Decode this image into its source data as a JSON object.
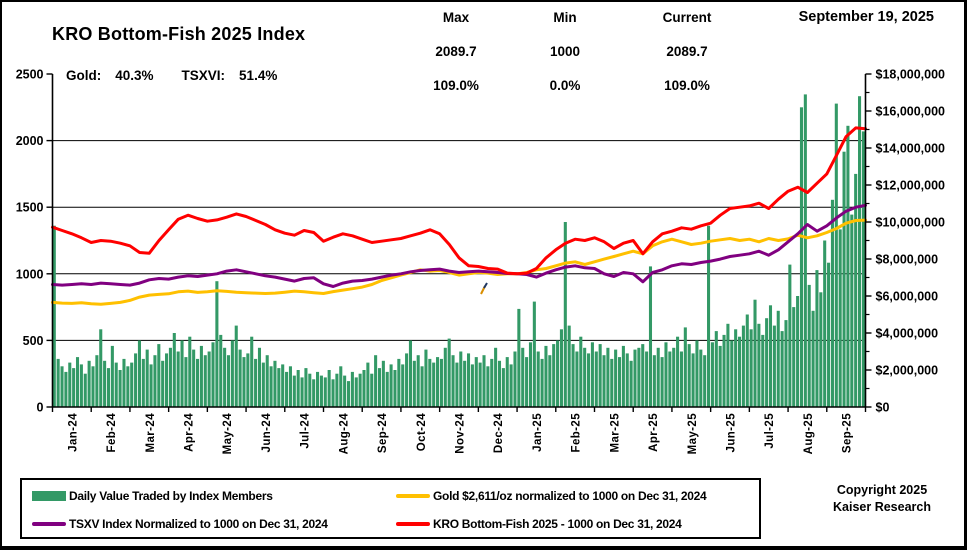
{
  "header": {
    "title": "KRO Bottom-Fish 2025 Index",
    "date": "September 19, 2025",
    "gold_label": "Gold:",
    "gold_value": "40.3%",
    "tsxvi_label": "TSXVI:",
    "tsxvi_value": "51.4%",
    "stats": {
      "columns": [
        {
          "label": "Max",
          "value": "2089.7",
          "pct": "109.0%"
        },
        {
          "label": "Min",
          "value": "1000",
          "pct": "0.0%"
        },
        {
          "label": "Current",
          "value": "2089.7",
          "pct": "109.0%"
        }
      ]
    }
  },
  "legend": {
    "items": [
      {
        "label": "Daily Value Traded by Index Members",
        "color": "#339966",
        "type": "bar"
      },
      {
        "label": "Gold $2,611/oz normalized to 1000 on Dec 31, 2024",
        "color": "#FFC000",
        "type": "line"
      },
      {
        "label": "TSXV Index Normalized to 1000 on Dec 31, 2024",
        "color": "#800080",
        "type": "line"
      },
      {
        "label": "KRO Bottom-Fish 2025 - 1000 on Dec 31, 2024",
        "color": "#FF0000",
        "type": "line"
      }
    ]
  },
  "footer": {
    "copyright_line1": "Copyright 2025",
    "copyright_line2": "Kaiser Research"
  },
  "chart_data": {
    "type": "bar+line",
    "legend_position": "bottom",
    "x_categories": [
      "Jan-24",
      "Feb-24",
      "Mar-24",
      "Apr-24",
      "May-24",
      "Jun-24",
      "Jul-24",
      "Aug-24",
      "Sep-24",
      "Oct-24",
      "Nov-24",
      "Dec-24",
      "Jan-25",
      "Feb-25",
      "Mar-25",
      "Apr-25",
      "May-25",
      "Jun-25",
      "Jul-25",
      "Aug-25",
      "Sep-25"
    ],
    "left_axis": {
      "min": 0,
      "max": 2500,
      "tick_interval": 500,
      "tick_labels": [
        "0",
        "500",
        "1000",
        "1500",
        "2000",
        "2500"
      ],
      "gridlines": [
        500,
        1000,
        1500,
        2000
      ]
    },
    "right_axis": {
      "min": 0,
      "max": 18000000,
      "tick_interval": 2000000,
      "tick_labels": [
        "$0",
        "$2,000,000",
        "$4,000,000",
        "$6,000,000",
        "$8,000,000",
        "$10,000,000",
        "$12,000,000",
        "$14,000,000",
        "$16,000,000",
        "$18,000,000"
      ],
      "minor_tick_interval": 1000000
    },
    "bars": {
      "name": "Daily Value Traded by Index Members",
      "axis": "right",
      "color": "#339966",
      "values_usd": [
        9800000,
        2600000,
        2200000,
        1900000,
        2400000,
        2100000,
        2700000,
        2300000,
        1800000,
        2500000,
        2200000,
        2800000,
        4200000,
        2500000,
        2100000,
        3300000,
        2400000,
        2000000,
        2600000,
        2200000,
        2400000,
        2900000,
        3600000,
        2600000,
        3100000,
        2300000,
        2800000,
        3400000,
        2500000,
        2900000,
        3200000,
        4000000,
        3000000,
        3600000,
        2700000,
        3800000,
        3100000,
        2600000,
        3300000,
        2800000,
        3000000,
        3500000,
        6800000,
        3900000,
        3200000,
        2800000,
        3600000,
        4400000,
        3100000,
        2700000,
        2900000,
        3800000,
        2600000,
        3200000,
        2400000,
        2800000,
        2200000,
        2500000,
        2100000,
        2300000,
        1900000,
        2200000,
        1700000,
        2000000,
        1600000,
        2100000,
        1800000,
        1500000,
        1900000,
        1700000,
        1600000,
        2000000,
        1500000,
        1800000,
        2200000,
        1700000,
        1400000,
        1900000,
        1600000,
        1800000,
        2000000,
        2400000,
        1800000,
        2800000,
        2100000,
        2500000,
        1900000,
        2300000,
        2000000,
        2600000,
        2300000,
        2900000,
        3600000,
        2500000,
        2800000,
        2200000,
        3100000,
        2600000,
        2400000,
        2700000,
        2600000,
        3200000,
        3700000,
        2800000,
        2400000,
        3000000,
        2500000,
        2900000,
        2300000,
        2700000,
        2400000,
        2800000,
        2200000,
        2600000,
        3200000,
        2500000,
        2100000,
        2700000,
        2300000,
        3000000,
        5300000,
        3200000,
        2700000,
        3500000,
        5700000,
        3000000,
        2600000,
        3300000,
        2800000,
        3400000,
        3600000,
        4200000,
        10000000,
        4400000,
        3400000,
        3000000,
        3800000,
        3200000,
        2900000,
        3500000,
        3000000,
        3400000,
        2800000,
        3200000,
        2600000,
        3100000,
        2700000,
        3300000,
        2900000,
        2500000,
        3100000,
        3200000,
        3400000,
        3000000,
        7600000,
        2800000,
        3200000,
        2700000,
        3500000,
        3000000,
        3200000,
        3800000,
        3000000,
        4300000,
        3400000,
        2900000,
        3600000,
        3100000,
        2800000,
        9800000,
        3500000,
        4100000,
        3300000,
        3900000,
        4500000,
        3600000,
        4200000,
        3800000,
        4400000,
        5000000,
        4200000,
        5800000,
        4500000,
        3900000,
        4800000,
        5500000,
        4400000,
        5200000,
        4100000,
        4700000,
        7700000,
        5400000,
        6000000,
        16200000,
        16900000,
        6600000,
        5200000,
        7400000,
        6200000,
        9000000,
        7800000,
        11200000,
        16400000,
        9600000,
        13800000,
        15200000,
        10400000,
        12600000,
        16800000,
        14900000
      ]
    },
    "series": [
      {
        "name": "Gold $2,611/oz normalized to 1000 on Dec 31, 2024",
        "axis": "left",
        "color": "#FFC000",
        "values": [
          785,
          780,
          778,
          782,
          775,
          772,
          778,
          785,
          800,
          825,
          840,
          845,
          850,
          865,
          870,
          860,
          865,
          872,
          868,
          862,
          858,
          855,
          852,
          855,
          862,
          870,
          865,
          858,
          852,
          866,
          878,
          888,
          900,
          920,
          950,
          970,
          990,
          1010,
          1030,
          1020,
          1025,
          1010,
          990,
          1000,
          1010,
          1005,
          995,
          1000,
          1000,
          1010,
          1030,
          1040,
          1060,
          1080,
          1090,
          1070,
          1090,
          1110,
          1130,
          1150,
          1170,
          1150,
          1210,
          1240,
          1260,
          1240,
          1220,
          1230,
          1245,
          1255,
          1265,
          1250,
          1260,
          1240,
          1265,
          1250,
          1262,
          1290,
          1270,
          1285,
          1310,
          1340,
          1380,
          1400,
          1403
        ]
      },
      {
        "name": "TSXV Index Normalized to 1000 on Dec 31, 2024",
        "axis": "left",
        "color": "#800080",
        "values": [
          920,
          915,
          920,
          925,
          920,
          930,
          925,
          920,
          915,
          930,
          955,
          965,
          960,
          975,
          985,
          980,
          990,
          1000,
          1020,
          1030,
          1015,
          1000,
          985,
          975,
          960,
          945,
          965,
          970,
          925,
          905,
          930,
          945,
          950,
          960,
          975,
          990,
          1000,
          1015,
          1025,
          1030,
          1035,
          1020,
          1010,
          1015,
          1020,
          1015,
          1010,
          1002,
          1000,
          995,
          975,
          1005,
          1030,
          1050,
          1060,
          1045,
          1040,
          1000,
          980,
          1010,
          1000,
          940,
          1010,
          1030,
          1060,
          1075,
          1070,
          1085,
          1095,
          1110,
          1130,
          1140,
          1150,
          1170,
          1140,
          1180,
          1240,
          1300,
          1370,
          1320,
          1360,
          1420,
          1470,
          1500,
          1514
        ]
      },
      {
        "name": "KRO Bottom-Fish 2025 - 1000 on Dec 31, 2024",
        "axis": "left",
        "color": "#FF0000",
        "values": [
          1350,
          1325,
          1300,
          1270,
          1235,
          1250,
          1245,
          1230,
          1210,
          1160,
          1155,
          1250,
          1330,
          1410,
          1440,
          1415,
          1395,
          1405,
          1425,
          1450,
          1430,
          1400,
          1370,
          1330,
          1305,
          1290,
          1325,
          1310,
          1245,
          1275,
          1300,
          1285,
          1260,
          1235,
          1245,
          1255,
          1265,
          1285,
          1305,
          1330,
          1300,
          1220,
          1120,
          1060,
          1055,
          1040,
          1035,
          1005,
          1000,
          1005,
          1040,
          1120,
          1180,
          1230,
          1260,
          1250,
          1270,
          1240,
          1190,
          1230,
          1250,
          1150,
          1240,
          1300,
          1320,
          1345,
          1335,
          1360,
          1380,
          1440,
          1490,
          1500,
          1510,
          1530,
          1490,
          1560,
          1620,
          1650,
          1610,
          1680,
          1750,
          1890,
          2030,
          2095,
          2089.7
        ]
      }
    ],
    "annotations": [
      {
        "type": "stray-mark",
        "x": 481,
        "y": 287
      }
    ]
  }
}
